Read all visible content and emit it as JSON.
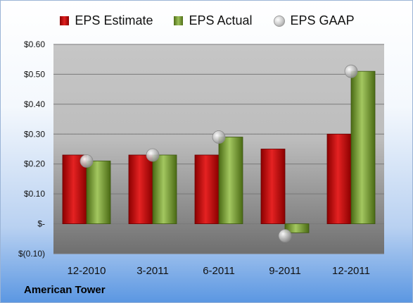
{
  "chart_data": {
    "type": "bar",
    "categories": [
      "12-2010",
      "3-2011",
      "6-2011",
      "9-2011",
      "12-2011"
    ],
    "series": [
      {
        "name": "EPS Estimate",
        "kind": "bar",
        "color": "#d42020",
        "values": [
          0.23,
          0.23,
          0.23,
          0.25,
          0.3
        ]
      },
      {
        "name": "EPS Actual",
        "kind": "bar",
        "color": "#8cb34a",
        "values": [
          0.21,
          0.23,
          0.29,
          -0.03,
          0.51
        ]
      },
      {
        "name": "EPS GAAP",
        "kind": "marker",
        "color": "#b8b8b8",
        "values": [
          0.21,
          0.23,
          0.29,
          -0.04,
          0.51
        ]
      }
    ],
    "ylim": [
      -0.1,
      0.6
    ],
    "yticks": [
      -0.1,
      0.0,
      0.1,
      0.2,
      0.3,
      0.4,
      0.5,
      0.6
    ],
    "ytick_labels": [
      "$(0.10)",
      "$-",
      "$0.10",
      "$0.20",
      "$0.30",
      "$0.40",
      "$0.50",
      "$0.60"
    ],
    "grid": true,
    "legend_position": "top"
  },
  "legend": {
    "estimate": "EPS Estimate",
    "actual": "EPS Actual",
    "gaap": "EPS GAAP"
  },
  "company": "American Tower"
}
